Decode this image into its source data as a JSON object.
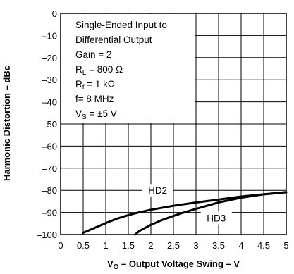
{
  "chart_data": {
    "type": "line",
    "xlabel": {
      "main": "V",
      "sub": "O",
      "rest": " – Output Voltage Swing – V"
    },
    "ylabel": "Harmonic Distortion – dBc",
    "xlim": [
      0,
      5
    ],
    "ylim": [
      -100,
      0
    ],
    "x_ticks": [
      "0",
      "0.5",
      "1",
      "1.5",
      "2",
      "2.5",
      "3",
      "3.5",
      "4",
      "4.5",
      "5"
    ],
    "y_ticks": [
      "0",
      "–10",
      "–20",
      "–30",
      "–40",
      "–50",
      "–60",
      "–70",
      "–80",
      "–90",
      "–100"
    ],
    "x_tick_values": [
      0,
      0.5,
      1,
      1.5,
      2,
      2.5,
      3,
      3.5,
      4,
      4.5,
      5
    ],
    "y_tick_values": [
      0,
      -10,
      -20,
      -30,
      -40,
      -50,
      -60,
      -70,
      -80,
      -90,
      -100
    ],
    "grid": true,
    "annotation_lines": [
      {
        "text": "Single-Ended Input to"
      },
      {
        "text": "Differential Output"
      },
      {
        "text": "Gain = 2"
      },
      {
        "main": "R",
        "sub": "L",
        "rest": " = 800 Ω"
      },
      {
        "main": "R",
        "sub": "f",
        "rest": " = 1 kΩ"
      },
      {
        "text": "f= 8 MHz"
      },
      {
        "main": "V",
        "sub": "S",
        "rest": " = ±5 V"
      }
    ],
    "series": [
      {
        "name": "HD2",
        "color": "#000000",
        "x": [
          0.5,
          0.75,
          1.0,
          1.25,
          1.5,
          1.75,
          2.0,
          2.5,
          3.0,
          3.5,
          4.0,
          4.5,
          5.0
        ],
        "y": [
          -99.2,
          -97.0,
          -94.8,
          -92.8,
          -91.2,
          -89.9,
          -88.8,
          -87.0,
          -85.5,
          -84.2,
          -82.8,
          -81.8,
          -80.9
        ]
      },
      {
        "name": "HD3",
        "color": "#000000",
        "x": [
          1.65,
          1.75,
          2.0,
          2.25,
          2.5,
          2.75,
          3.0,
          3.5,
          4.0,
          4.5,
          5.0
        ],
        "y": [
          -100,
          -98.3,
          -95.6,
          -93.4,
          -91.6,
          -89.9,
          -88.4,
          -85.5,
          -83.3,
          -81.8,
          -80.8
        ]
      }
    ],
    "series_labels": [
      {
        "text": "HD2",
        "x": 2.15,
        "y": -80
      },
      {
        "text": "HD3",
        "x": 3.45,
        "y": -92.5
      }
    ]
  }
}
